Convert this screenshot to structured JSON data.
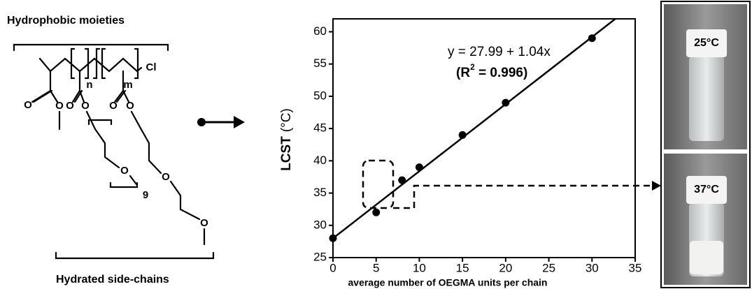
{
  "chart_data": {
    "type": "scatter",
    "x": [
      0,
      5,
      8,
      10,
      15,
      20,
      30
    ],
    "values": [
      28,
      32,
      37,
      39,
      44,
      49,
      59
    ],
    "color": "#000000",
    "xlim": [
      0,
      35
    ],
    "xticks": [
      0,
      5,
      10,
      15,
      20,
      25,
      30,
      35
    ],
    "ylim": [
      25,
      62
    ],
    "yticks": [
      25,
      30,
      35,
      40,
      45,
      50,
      55,
      60
    ],
    "xlabel": "average number of OEGMA units per chain",
    "ylabel": "LCST",
    "ylabel_unit": "(°C)",
    "equation": "y = 27.99 + 1.04x",
    "r2": [
      "(R",
      "2",
      " = 0.996)"
    ],
    "fit": {
      "intercept": 27.99,
      "slope": 1.04
    },
    "grid": false
  },
  "scheme": {
    "top_label": "Hydrophobic moieties",
    "bottom_label": "Hydrated side-chains",
    "atoms": [
      "O",
      "O",
      "O",
      "O",
      "O",
      "O",
      "O",
      "O",
      "O",
      "Cl",
      "n",
      "m",
      "9"
    ],
    "photos": [
      "25°C",
      "37°C"
    ]
  }
}
